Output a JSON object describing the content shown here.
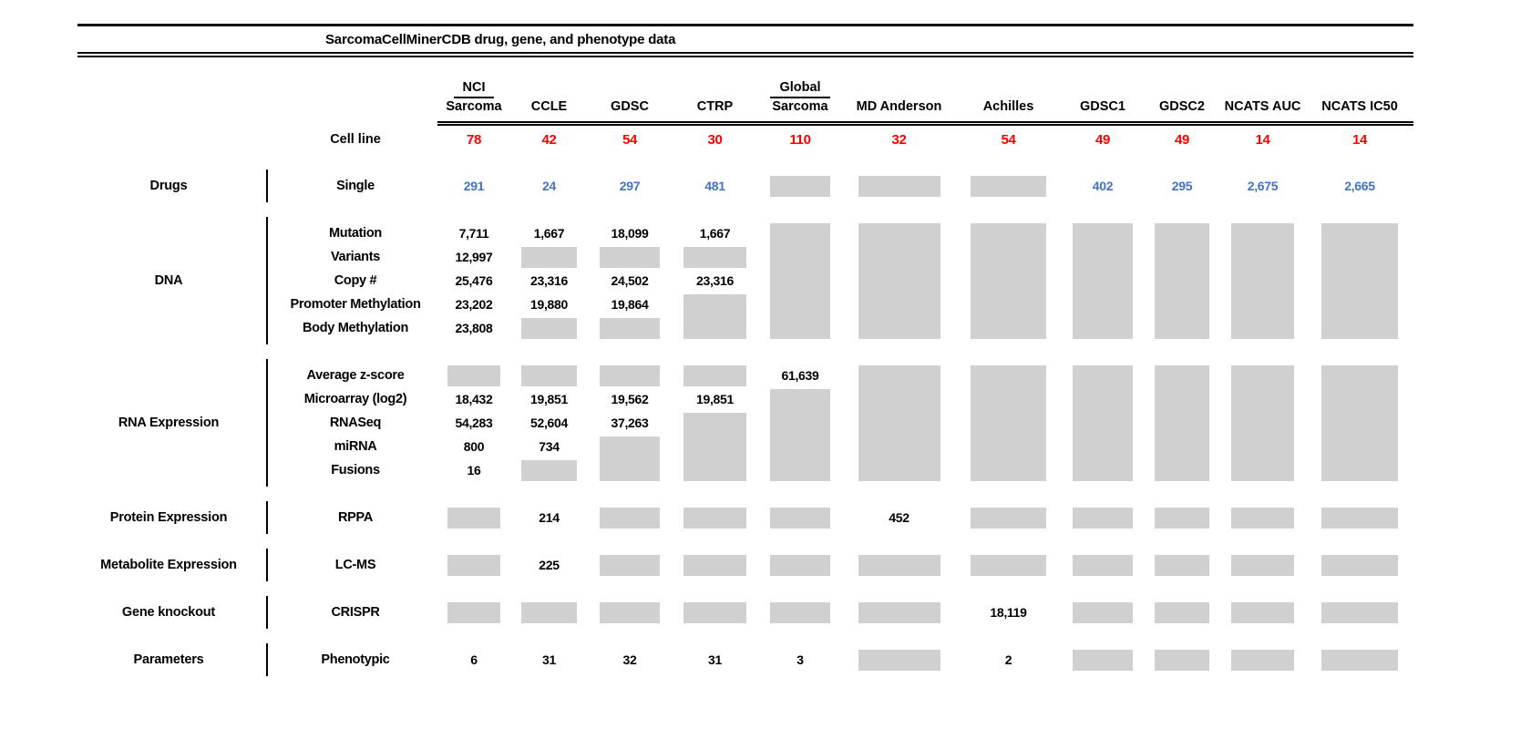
{
  "title": "SarcomaCellMinerCDB drug, gene, and phenotype data",
  "colors": {
    "red": "#FF0000",
    "blue": "#4472C4",
    "gray": "#D1D0D0",
    "line": "#000000"
  },
  "legend_note_cells": "cell value {\"t\": n} = number shown, {\"g\": k} = gray missing-data box spanning k rows",
  "chart_data": {
    "type": "table",
    "title": "SarcomaCellMinerCDB drug, gene, and phenotype data",
    "cell_line_row_label": "Cell line",
    "columns": [
      {
        "top": "NCI",
        "name": "Sarcoma",
        "cell_lines": "78"
      },
      {
        "top": "",
        "name": "CCLE",
        "cell_lines": "42"
      },
      {
        "top": "",
        "name": "GDSC",
        "cell_lines": "54"
      },
      {
        "top": "",
        "name": "CTRP",
        "cell_lines": "30"
      },
      {
        "top": "Global",
        "name": "Sarcoma",
        "cell_lines": "110"
      },
      {
        "top": "",
        "name": "MD Anderson",
        "cell_lines": "32"
      },
      {
        "top": "",
        "name": "Achilles",
        "cell_lines": "54"
      },
      {
        "top": "",
        "name": "GDSC1",
        "cell_lines": "49"
      },
      {
        "top": "",
        "name": "GDSC2",
        "cell_lines": "49"
      },
      {
        "top": "",
        "name": "NCATS AUC",
        "cell_lines": "14"
      },
      {
        "top": "",
        "name": "NCATS IC50",
        "cell_lines": "14"
      }
    ],
    "sections": [
      {
        "category": "Drugs",
        "value_color": "blue",
        "rows": [
          "Single"
        ],
        "columns": [
          [
            {
              "t": "291"
            }
          ],
          [
            {
              "t": "24"
            }
          ],
          [
            {
              "t": "297"
            }
          ],
          [
            {
              "t": "481"
            }
          ],
          [
            {
              "g": 1
            }
          ],
          [
            {
              "g": 1
            }
          ],
          [
            {
              "g": 1
            }
          ],
          [
            {
              "t": "402"
            }
          ],
          [
            {
              "t": "295"
            }
          ],
          [
            {
              "t": "2,675"
            }
          ],
          [
            {
              "t": "2,665"
            }
          ]
        ]
      },
      {
        "category": "DNA",
        "value_color": "black",
        "rows": [
          "Mutation",
          "Variants",
          "Copy #",
          "Promoter Methylation",
          "Body Methylation"
        ],
        "columns": [
          [
            {
              "t": "7,711"
            },
            {
              "t": "12,997"
            },
            {
              "t": "25,476"
            },
            {
              "t": "23,202"
            },
            {
              "t": "23,808"
            }
          ],
          [
            {
              "t": "1,667"
            },
            {
              "g": 1
            },
            {
              "t": "23,316"
            },
            {
              "t": "19,880"
            },
            {
              "g": 1
            }
          ],
          [
            {
              "t": "18,099"
            },
            {
              "g": 1
            },
            {
              "t": "24,502"
            },
            {
              "t": "19,864"
            },
            {
              "g": 1
            }
          ],
          [
            {
              "t": "1,667"
            },
            {
              "g": 1
            },
            {
              "t": "23,316"
            },
            {
              "g": 2
            }
          ],
          [
            {
              "g": 5
            }
          ],
          [
            {
              "g": 5
            }
          ],
          [
            {
              "g": 5
            }
          ],
          [
            {
              "g": 5
            }
          ],
          [
            {
              "g": 5
            }
          ],
          [
            {
              "g": 5
            }
          ],
          [
            {
              "g": 5
            }
          ]
        ]
      },
      {
        "category": "RNA Expression",
        "value_color": "black",
        "rows": [
          "Average z-score",
          "Microarray (log2)",
          "RNASeq",
          "miRNA",
          "Fusions"
        ],
        "columns": [
          [
            {
              "g": 1
            },
            {
              "t": "18,432"
            },
            {
              "t": "54,283"
            },
            {
              "t": "800"
            },
            {
              "t": "16"
            }
          ],
          [
            {
              "g": 1
            },
            {
              "t": "19,851"
            },
            {
              "t": "52,604"
            },
            {
              "t": "734"
            },
            {
              "g": 1
            }
          ],
          [
            {
              "g": 1
            },
            {
              "t": "19,562"
            },
            {
              "t": "37,263"
            },
            {
              "g": 2
            }
          ],
          [
            {
              "g": 1
            },
            {
              "t": "19,851"
            },
            {
              "g": 3
            }
          ],
          [
            {
              "t": "61,639"
            },
            {
              "g": 4
            }
          ],
          [
            {
              "g": 5
            }
          ],
          [
            {
              "g": 5
            }
          ],
          [
            {
              "g": 5
            }
          ],
          [
            {
              "g": 5
            }
          ],
          [
            {
              "g": 5
            }
          ],
          [
            {
              "g": 5
            }
          ]
        ]
      },
      {
        "category": "Protein Expression",
        "value_color": "black",
        "rows": [
          "RPPA"
        ],
        "columns": [
          [
            {
              "g": 1
            }
          ],
          [
            {
              "t": "214"
            }
          ],
          [
            {
              "g": 1
            }
          ],
          [
            {
              "g": 1
            }
          ],
          [
            {
              "g": 1
            }
          ],
          [
            {
              "t": "452"
            }
          ],
          [
            {
              "g": 1
            }
          ],
          [
            {
              "g": 1
            }
          ],
          [
            {
              "g": 1
            }
          ],
          [
            {
              "g": 1
            }
          ],
          [
            {
              "g": 1
            }
          ]
        ]
      },
      {
        "category": "Metabolite Expression",
        "value_color": "black",
        "rows": [
          "LC-MS"
        ],
        "columns": [
          [
            {
              "g": 1
            }
          ],
          [
            {
              "t": "225"
            }
          ],
          [
            {
              "g": 1
            }
          ],
          [
            {
              "g": 1
            }
          ],
          [
            {
              "g": 1
            }
          ],
          [
            {
              "g": 1
            }
          ],
          [
            {
              "g": 1
            }
          ],
          [
            {
              "g": 1
            }
          ],
          [
            {
              "g": 1
            }
          ],
          [
            {
              "g": 1
            }
          ],
          [
            {
              "g": 1
            }
          ]
        ]
      },
      {
        "category": "Gene knockout",
        "value_color": "black",
        "rows": [
          "CRISPR"
        ],
        "columns": [
          [
            {
              "g": 1
            }
          ],
          [
            {
              "g": 1
            }
          ],
          [
            {
              "g": 1
            }
          ],
          [
            {
              "g": 1
            }
          ],
          [
            {
              "g": 1
            }
          ],
          [
            {
              "g": 1
            }
          ],
          [
            {
              "t": "18,119"
            }
          ],
          [
            {
              "g": 1
            }
          ],
          [
            {
              "g": 1
            }
          ],
          [
            {
              "g": 1
            }
          ],
          [
            {
              "g": 1
            }
          ]
        ]
      },
      {
        "category": "Parameters",
        "value_color": "black",
        "rows": [
          "Phenotypic"
        ],
        "columns": [
          [
            {
              "t": "6"
            }
          ],
          [
            {
              "t": "31"
            }
          ],
          [
            {
              "t": "32"
            }
          ],
          [
            {
              "t": "31"
            }
          ],
          [
            {
              "t": "3"
            }
          ],
          [
            {
              "g": 1
            }
          ],
          [
            {
              "t": "2"
            }
          ],
          [
            {
              "g": 1
            }
          ],
          [
            {
              "g": 1
            }
          ],
          [
            {
              "g": 1
            }
          ],
          [
            {
              "g": 1
            }
          ]
        ]
      }
    ]
  }
}
